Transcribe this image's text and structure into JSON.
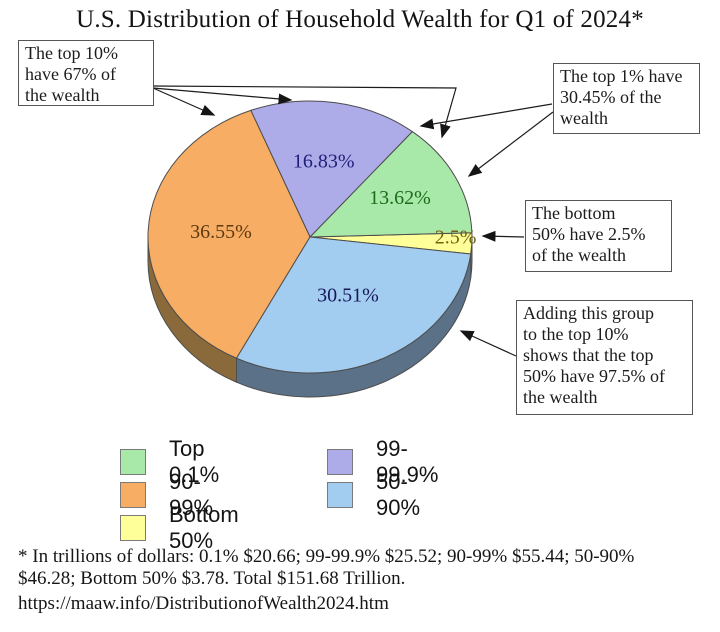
{
  "title": "U.S. Distribution of Household Wealth for Q1 of 2024*",
  "chart_data": {
    "type": "pie",
    "title": "U.S. Distribution of Household Wealth for Q1 of 2024*",
    "unit": "percent of U.S. household wealth",
    "style": "3d-pie",
    "start_angle_deg": -7.2,
    "direction": "ccw",
    "total_trillions": 151.68,
    "slices": [
      {
        "name": "Bottom 50%",
        "value": 2.5,
        "label": "2.5%",
        "trillions": 3.78,
        "color": "#ffff99",
        "side_color": "#a8a34e",
        "label_color": "#6e6212"
      },
      {
        "name": "Top 0.1%",
        "value": 13.62,
        "label": "13.62%",
        "trillions": 20.66,
        "color": "#a8e8a8",
        "side_color": "#6fa06f",
        "label_color": "#1d6b1d"
      },
      {
        "name": "99-99.9%",
        "value": 16.83,
        "label": "16.83%",
        "trillions": 25.52,
        "color": "#aeace8",
        "side_color": "#7472b0",
        "label_color": "#1f1f7a"
      },
      {
        "name": "90-99%",
        "value": 36.55,
        "label": "36.55%",
        "trillions": 55.44,
        "color": "#f7ad63",
        "side_color": "#8a6a3a",
        "label_color": "#5c3a10"
      },
      {
        "name": "50-90%",
        "value": 30.51,
        "label": "30.51%",
        "trillions": 46.28,
        "color": "#a3cdf0",
        "side_color": "#5a7187",
        "label_color": "#16165a"
      }
    ],
    "legend_position": "bottom"
  },
  "annotations": {
    "top_left": "The top 10%\nhave 67% of\nthe wealth",
    "top_right": "The top 1% have\n30.45% of the\nwealth",
    "mid_right": "The bottom\n50% have 2.5%\nof the wealth",
    "bottom_right": "Adding this group\nto the top 10%\nshows that the top\n50% have 97.5% of\nthe wealth"
  },
  "legend": {
    "items": [
      {
        "label": "Top 0.1%",
        "color": "#a8e8a8"
      },
      {
        "label": "99-99.9%",
        "color": "#aeace8"
      },
      {
        "label": "90-99%",
        "color": "#f7ad63"
      },
      {
        "label": "50-90%",
        "color": "#a3cdf0"
      },
      {
        "label": "Bottom 50%",
        "color": "#ffff99"
      }
    ]
  },
  "footnote": {
    "text": "* In trillions of dollars: 0.1% $20.66; 99-99.9% $25.52; 90-99% $55.44; 50-90%\n$46.28; Bottom 50% $3.78.  Total $151.68 Trillion.",
    "url": "https://maaw.info/DistributionofWealth2024.htm"
  }
}
